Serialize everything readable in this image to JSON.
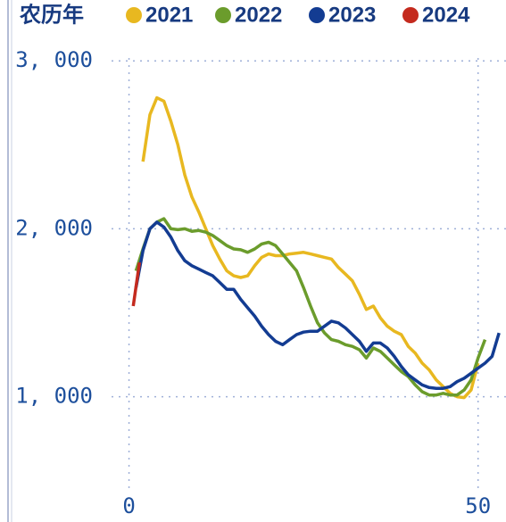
{
  "chart_data": {
    "type": "line",
    "legend_title": "农历年",
    "xlim": [
      -2.5,
      54
    ],
    "xticks": [
      0,
      50
    ],
    "ylim": [
      440,
      3150
    ],
    "yticks": [
      {
        "value": 1000,
        "label": "1, 000"
      },
      {
        "value": 2000,
        "label": "2, 000"
      },
      {
        "value": 3000,
        "label": "3, 000"
      }
    ],
    "grid": true,
    "series": [
      {
        "name": "2021",
        "color": "#e8b820",
        "x": [
          2,
          3,
          4,
          5,
          6,
          7,
          8,
          9,
          10,
          11,
          12,
          13,
          14,
          15,
          16,
          17,
          18,
          19,
          20,
          21,
          22,
          23,
          24,
          25,
          26,
          27,
          28,
          29,
          30,
          31,
          32,
          33,
          34,
          35,
          36,
          37,
          38,
          39,
          40,
          41,
          42,
          43,
          44,
          45,
          46,
          47,
          48,
          49,
          50
        ],
        "values": [
          2400,
          2680,
          2780,
          2760,
          2640,
          2500,
          2320,
          2190,
          2100,
          2000,
          1900,
          1820,
          1750,
          1720,
          1710,
          1720,
          1780,
          1830,
          1850,
          1840,
          1840,
          1850,
          1855,
          1860,
          1850,
          1840,
          1830,
          1820,
          1770,
          1730,
          1690,
          1610,
          1520,
          1540,
          1470,
          1420,
          1390,
          1370,
          1300,
          1260,
          1200,
          1160,
          1100,
          1060,
          1020,
          1000,
          995,
          1040,
          1200
        ]
      },
      {
        "name": "2022",
        "color": "#6b9c2c",
        "x": [
          1,
          2,
          3,
          4,
          5,
          6,
          7,
          8,
          9,
          10,
          11,
          12,
          13,
          14,
          15,
          16,
          17,
          18,
          19,
          20,
          21,
          22,
          23,
          24,
          25,
          26,
          27,
          28,
          29,
          30,
          31,
          32,
          33,
          34,
          35,
          36,
          37,
          38,
          39,
          40,
          41,
          42,
          43,
          44,
          45,
          46,
          47,
          48,
          49,
          50,
          51
        ],
        "values": [
          1750,
          1880,
          2000,
          2040,
          2060,
          2000,
          1995,
          2000,
          1985,
          1990,
          1980,
          1960,
          1930,
          1900,
          1880,
          1875,
          1860,
          1880,
          1910,
          1920,
          1900,
          1850,
          1800,
          1750,
          1650,
          1540,
          1440,
          1380,
          1340,
          1330,
          1310,
          1300,
          1280,
          1230,
          1290,
          1270,
          1230,
          1190,
          1150,
          1120,
          1070,
          1030,
          1010,
          1010,
          1020,
          1010,
          1010,
          1040,
          1100,
          1230,
          1340
        ]
      },
      {
        "name": "2023",
        "color": "#133c92",
        "x": [
          1,
          2,
          3,
          4,
          5,
          6,
          7,
          8,
          9,
          10,
          11,
          12,
          13,
          14,
          15,
          16,
          17,
          18,
          19,
          20,
          21,
          22,
          23,
          24,
          25,
          26,
          27,
          28,
          29,
          30,
          31,
          32,
          33,
          34,
          35,
          36,
          37,
          38,
          39,
          40,
          41,
          42,
          43,
          44,
          45,
          46,
          47,
          48,
          49,
          50,
          51,
          52,
          53
        ],
        "values": [
          1650,
          1870,
          2000,
          2040,
          2010,
          1950,
          1870,
          1810,
          1780,
          1760,
          1740,
          1720,
          1680,
          1640,
          1640,
          1580,
          1530,
          1480,
          1420,
          1370,
          1330,
          1310,
          1340,
          1370,
          1385,
          1390,
          1390,
          1420,
          1450,
          1440,
          1410,
          1370,
          1330,
          1270,
          1320,
          1320,
          1290,
          1240,
          1180,
          1130,
          1100,
          1070,
          1055,
          1050,
          1050,
          1060,
          1090,
          1110,
          1140,
          1170,
          1200,
          1240,
          1380
        ]
      },
      {
        "name": "2024",
        "color": "#c42a1e",
        "x": [
          0.6,
          1.5
        ],
        "values": [
          1540,
          1800
        ]
      }
    ]
  }
}
